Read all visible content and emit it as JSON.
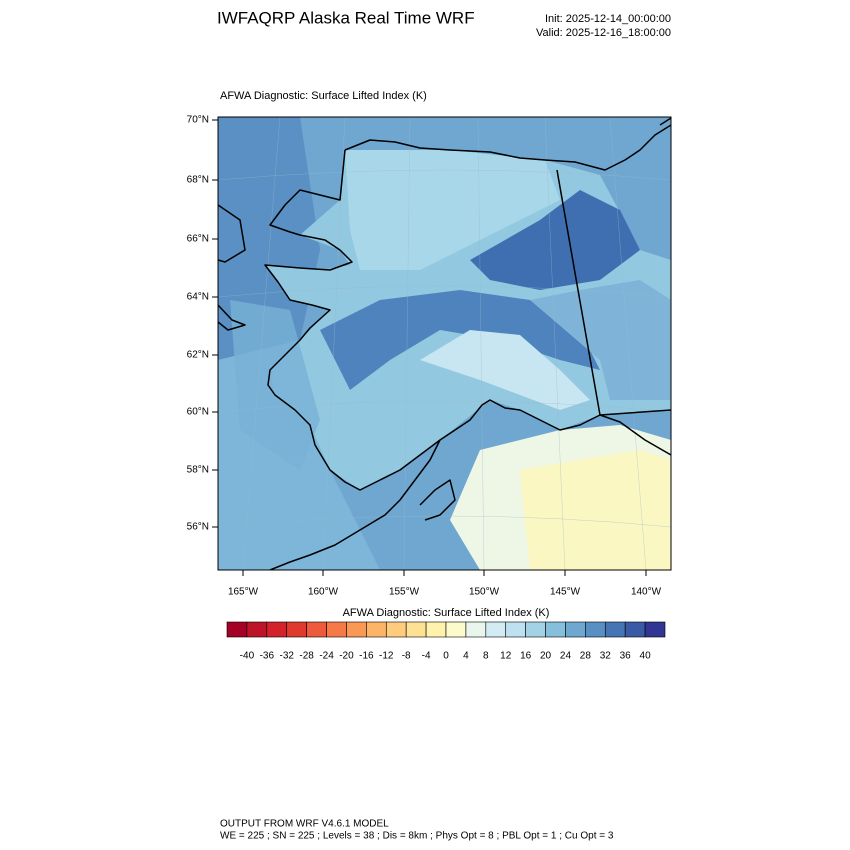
{
  "header": {
    "title": "IWFAQRP Alaska Real Time WRF",
    "init": "Init: 2025-12-14_00:00:00",
    "valid": "Valid: 2025-12-16_18:00:00"
  },
  "map": {
    "subtitle": "AFWA Diagnostic: Surface Lifted Index   (K)",
    "lat_labels": [
      "70°N",
      "68°N",
      "66°N",
      "64°N",
      "62°N",
      "60°N",
      "58°N",
      "56°N"
    ],
    "lon_labels": [
      "165°W",
      "160°W",
      "155°W",
      "150°W",
      "145°W",
      "140°W"
    ]
  },
  "colorbar": {
    "title": "AFWA Diagnostic: Surface Lifted Index  (K)",
    "levels": [
      -40,
      -36,
      -32,
      -28,
      -24,
      -20,
      -16,
      -12,
      -8,
      -4,
      0,
      4,
      8,
      12,
      16,
      20,
      24,
      28,
      32,
      36,
      40
    ],
    "colors": [
      "#a50026",
      "#be1428",
      "#d3222a",
      "#e0392e",
      "#ee5a3c",
      "#f67a48",
      "#fa9856",
      "#fdb466",
      "#fecc7c",
      "#fee192",
      "#fff2ac",
      "#fbfbcc",
      "#e9f6ec",
      "#d3ecf3",
      "#bde1ee",
      "#a3d2e6",
      "#86bfdc",
      "#6ea8d0",
      "#5890c3",
      "#4575b4",
      "#3a5aa6",
      "#313695"
    ]
  },
  "footer": {
    "line1": "OUTPUT FROM WRF V4.6.1 MODEL",
    "line2": "WE = 225 ; SN = 225 ; Levels = 38 ; Dis = 8km ; Phys Opt = 8 ; PBL Opt = 1 ; Cu Opt = 3"
  }
}
